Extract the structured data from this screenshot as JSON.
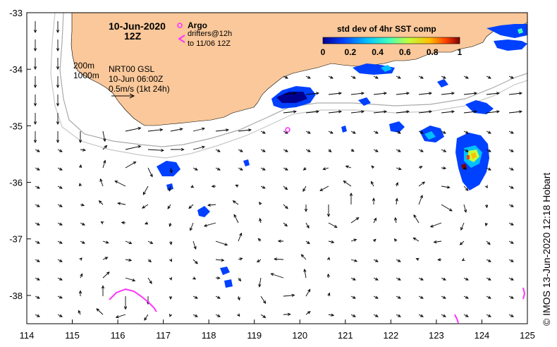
{
  "map": {
    "date_line1": "10-Jun-2020",
    "date_line2": "12Z",
    "argo_label": "Argo",
    "drifters_line1": "drifters@12h",
    "drifters_line2": "to 11/06 12Z",
    "contour_200": "200m",
    "contour_1000": "1000m",
    "product_line1": "NRT00 GSL",
    "product_line2": "10-Jun 06:00Z",
    "scale_label": "0.5m/s (1kt 24h)",
    "colorbar_title": "std dev of 4hr SST comp",
    "colorbar_ticks": [
      "0",
      "0.2",
      "0.4",
      "0.6",
      "0.8",
      "1"
    ],
    "credit": "© IMOS 13-Jun-2020 12:18 Hobart",
    "lon_ticks": [
      "114",
      "115",
      "116",
      "117",
      "118",
      "119",
      "120",
      "121",
      "122",
      "123",
      "124",
      "125"
    ],
    "lat_ticks": [
      "-33",
      "-34",
      "-35",
      "-36",
      "-37",
      "-38"
    ],
    "lon_range": [
      114,
      125
    ],
    "lat_range": [
      -38.5,
      -33
    ],
    "colors": {
      "land": "#fac89a",
      "argo": "#ff33ff",
      "drifter": "#ff33ff",
      "isobath": "#aaaaaa",
      "colormap": [
        "#00008f",
        "#0040ff",
        "#00c0ff",
        "#40ffbf",
        "#c0ff40",
        "#ffc000",
        "#ff4000",
        "#800000"
      ]
    },
    "argo_floats": [
      {
        "lon": 119.75,
        "lat": -35.05
      }
    ]
  }
}
